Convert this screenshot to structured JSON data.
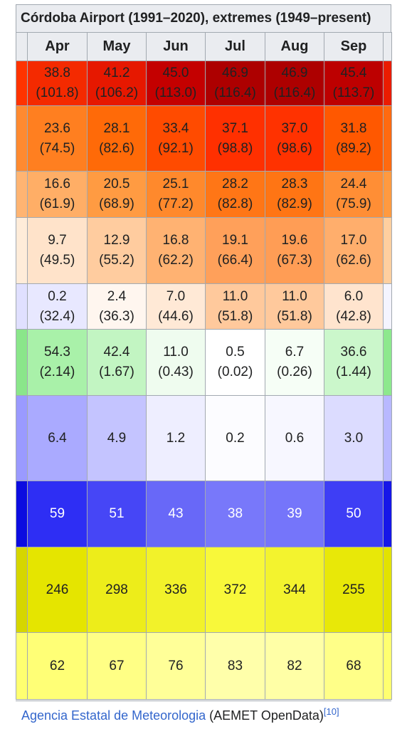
{
  "header": {
    "title": "Córdoba Airport (1991–2020), extremes (1949–present)"
  },
  "table": {
    "columns": [
      "Apr",
      "May",
      "Jun",
      "Jul",
      "Aug",
      "Sep"
    ],
    "rows": [
      {
        "cells": [
          [
            "38.8",
            "(101.8)"
          ],
          [
            "41.2",
            "(106.2)"
          ],
          [
            "45.0",
            "(113.0)"
          ],
          [
            "46.9",
            "(116.4)"
          ],
          [
            "46.9",
            "(116.4)"
          ],
          [
            "45.4",
            "(113.7)"
          ]
        ],
        "colors": [
          "#f42a00",
          "#e61800",
          "#c40000",
          "#ad0000",
          "#ad0000",
          "#bd0000"
        ],
        "edge_colors": [
          "#ff3300",
          "#ea1c00"
        ]
      },
      {
        "cells": [
          [
            "23.6",
            "(74.5)"
          ],
          [
            "28.1",
            "(82.6)"
          ],
          [
            "33.4",
            "(92.1)"
          ],
          [
            "37.1",
            "(98.8)"
          ],
          [
            "37.0",
            "(98.6)"
          ],
          [
            "31.8",
            "(89.2)"
          ]
        ],
        "colors": [
          "#ff7f20",
          "#ff6a08",
          "#ff4b00",
          "#ff3000",
          "#ff3200",
          "#ff5800"
        ],
        "edge_colors": [
          "#ff8a30",
          "#ff6a10"
        ]
      },
      {
        "cells": [
          [
            "16.6",
            "(61.9)"
          ],
          [
            "20.5",
            "(68.9)"
          ],
          [
            "25.1",
            "(77.2)"
          ],
          [
            "28.2",
            "(82.8)"
          ],
          [
            "28.3",
            "(82.9)"
          ],
          [
            "24.4",
            "(75.9)"
          ]
        ],
        "colors": [
          "#ffae66",
          "#ff9b42",
          "#ff892c",
          "#ff7616",
          "#ff7514",
          "#ff8e35"
        ],
        "edge_colors": [
          "#ffb472",
          "#ff9a40"
        ]
      },
      {
        "cells": [
          [
            "9.7",
            "(49.5)"
          ],
          [
            "12.9",
            "(55.2)"
          ],
          [
            "16.8",
            "(62.2)"
          ],
          [
            "19.1",
            "(66.4)"
          ],
          [
            "19.6",
            "(67.3)"
          ],
          [
            "17.0",
            "(62.6)"
          ]
        ],
        "colors": [
          "#ffe3ca",
          "#ffcc9f",
          "#ffb272",
          "#ffa05a",
          "#ff9d55",
          "#ffae6c"
        ],
        "edge_colors": [
          "#ffecd9",
          "#ffcf9f"
        ]
      },
      {
        "cells": [
          [
            "0.2",
            "(32.4)"
          ],
          [
            "2.4",
            "(36.3)"
          ],
          [
            "7.0",
            "(44.6)"
          ],
          [
            "11.0",
            "(51.8)"
          ],
          [
            "11.0",
            "(51.8)"
          ],
          [
            "6.0",
            "(42.8)"
          ]
        ],
        "colors": [
          "#e8e8ff",
          "#fff6ef",
          "#ffe9d6",
          "#ffc99c",
          "#ffc99c",
          "#ffe4ce"
        ],
        "edge_colors": [
          "#e0e0ff",
          "#f4f4ff"
        ]
      },
      {
        "cells": [
          [
            "54.3",
            "(2.14)"
          ],
          [
            "42.4",
            "(1.67)"
          ],
          [
            "11.0",
            "(0.43)"
          ],
          [
            "0.5",
            "(0.02)"
          ],
          [
            "6.7",
            "(0.26)"
          ],
          [
            "36.6",
            "(1.44)"
          ]
        ],
        "colors": [
          "#a9f1a9",
          "#c2f5c2",
          "#effcef",
          "#ffffff",
          "#f6fef6",
          "#cbf7cb"
        ],
        "edge_colors": [
          "#8ae68a",
          "#8de88d"
        ]
      },
      {
        "cells": [
          [
            "6.4"
          ],
          [
            "4.9"
          ],
          [
            "1.2"
          ],
          [
            "0.2"
          ],
          [
            "0.6"
          ],
          [
            "3.0"
          ]
        ],
        "colors": [
          "#aaaaff",
          "#c4c4ff",
          "#eeeeff",
          "#fcfcff",
          "#f7f7ff",
          "#dcdcff"
        ],
        "edge_colors": [
          "#9a9aff",
          "#b8b8ff"
        ]
      },
      {
        "cells": [
          [
            "59"
          ],
          [
            "51"
          ],
          [
            "43"
          ],
          [
            "38"
          ],
          [
            "39"
          ],
          [
            "50"
          ]
        ],
        "colors": [
          "#2e2ef4",
          "#4646f6",
          "#6868f8",
          "#7878fa",
          "#7575fa",
          "#3e3ef5"
        ],
        "edge_colors": [
          "#0c0ce0",
          "#1616e8"
        ],
        "text_color": "#ffffff"
      },
      {
        "cells": [
          [
            "246"
          ],
          [
            "298"
          ],
          [
            "336"
          ],
          [
            "372"
          ],
          [
            "344"
          ],
          [
            "255"
          ]
        ],
        "colors": [
          "#e5e500",
          "#eded1a",
          "#f2f22a",
          "#f8f83a",
          "#f3f32e",
          "#e8e808"
        ],
        "edge_colors": [
          "#d6d600",
          "#e2e200"
        ]
      },
      {
        "cells": [
          [
            "62"
          ],
          [
            "67"
          ],
          [
            "76"
          ],
          [
            "83"
          ],
          [
            "82"
          ],
          [
            "68"
          ]
        ],
        "colors": [
          "#ffff76",
          "#ffff85",
          "#ffff98",
          "#ffffaa",
          "#ffffa6",
          "#ffff88"
        ],
        "edge_colors": [
          "#ffff70",
          "#ffff70"
        ]
      }
    ]
  },
  "footer": {
    "source": "Agencia Estatal de Meteorologia",
    "note": " (AEMET OpenData)",
    "ref": "[10]"
  }
}
